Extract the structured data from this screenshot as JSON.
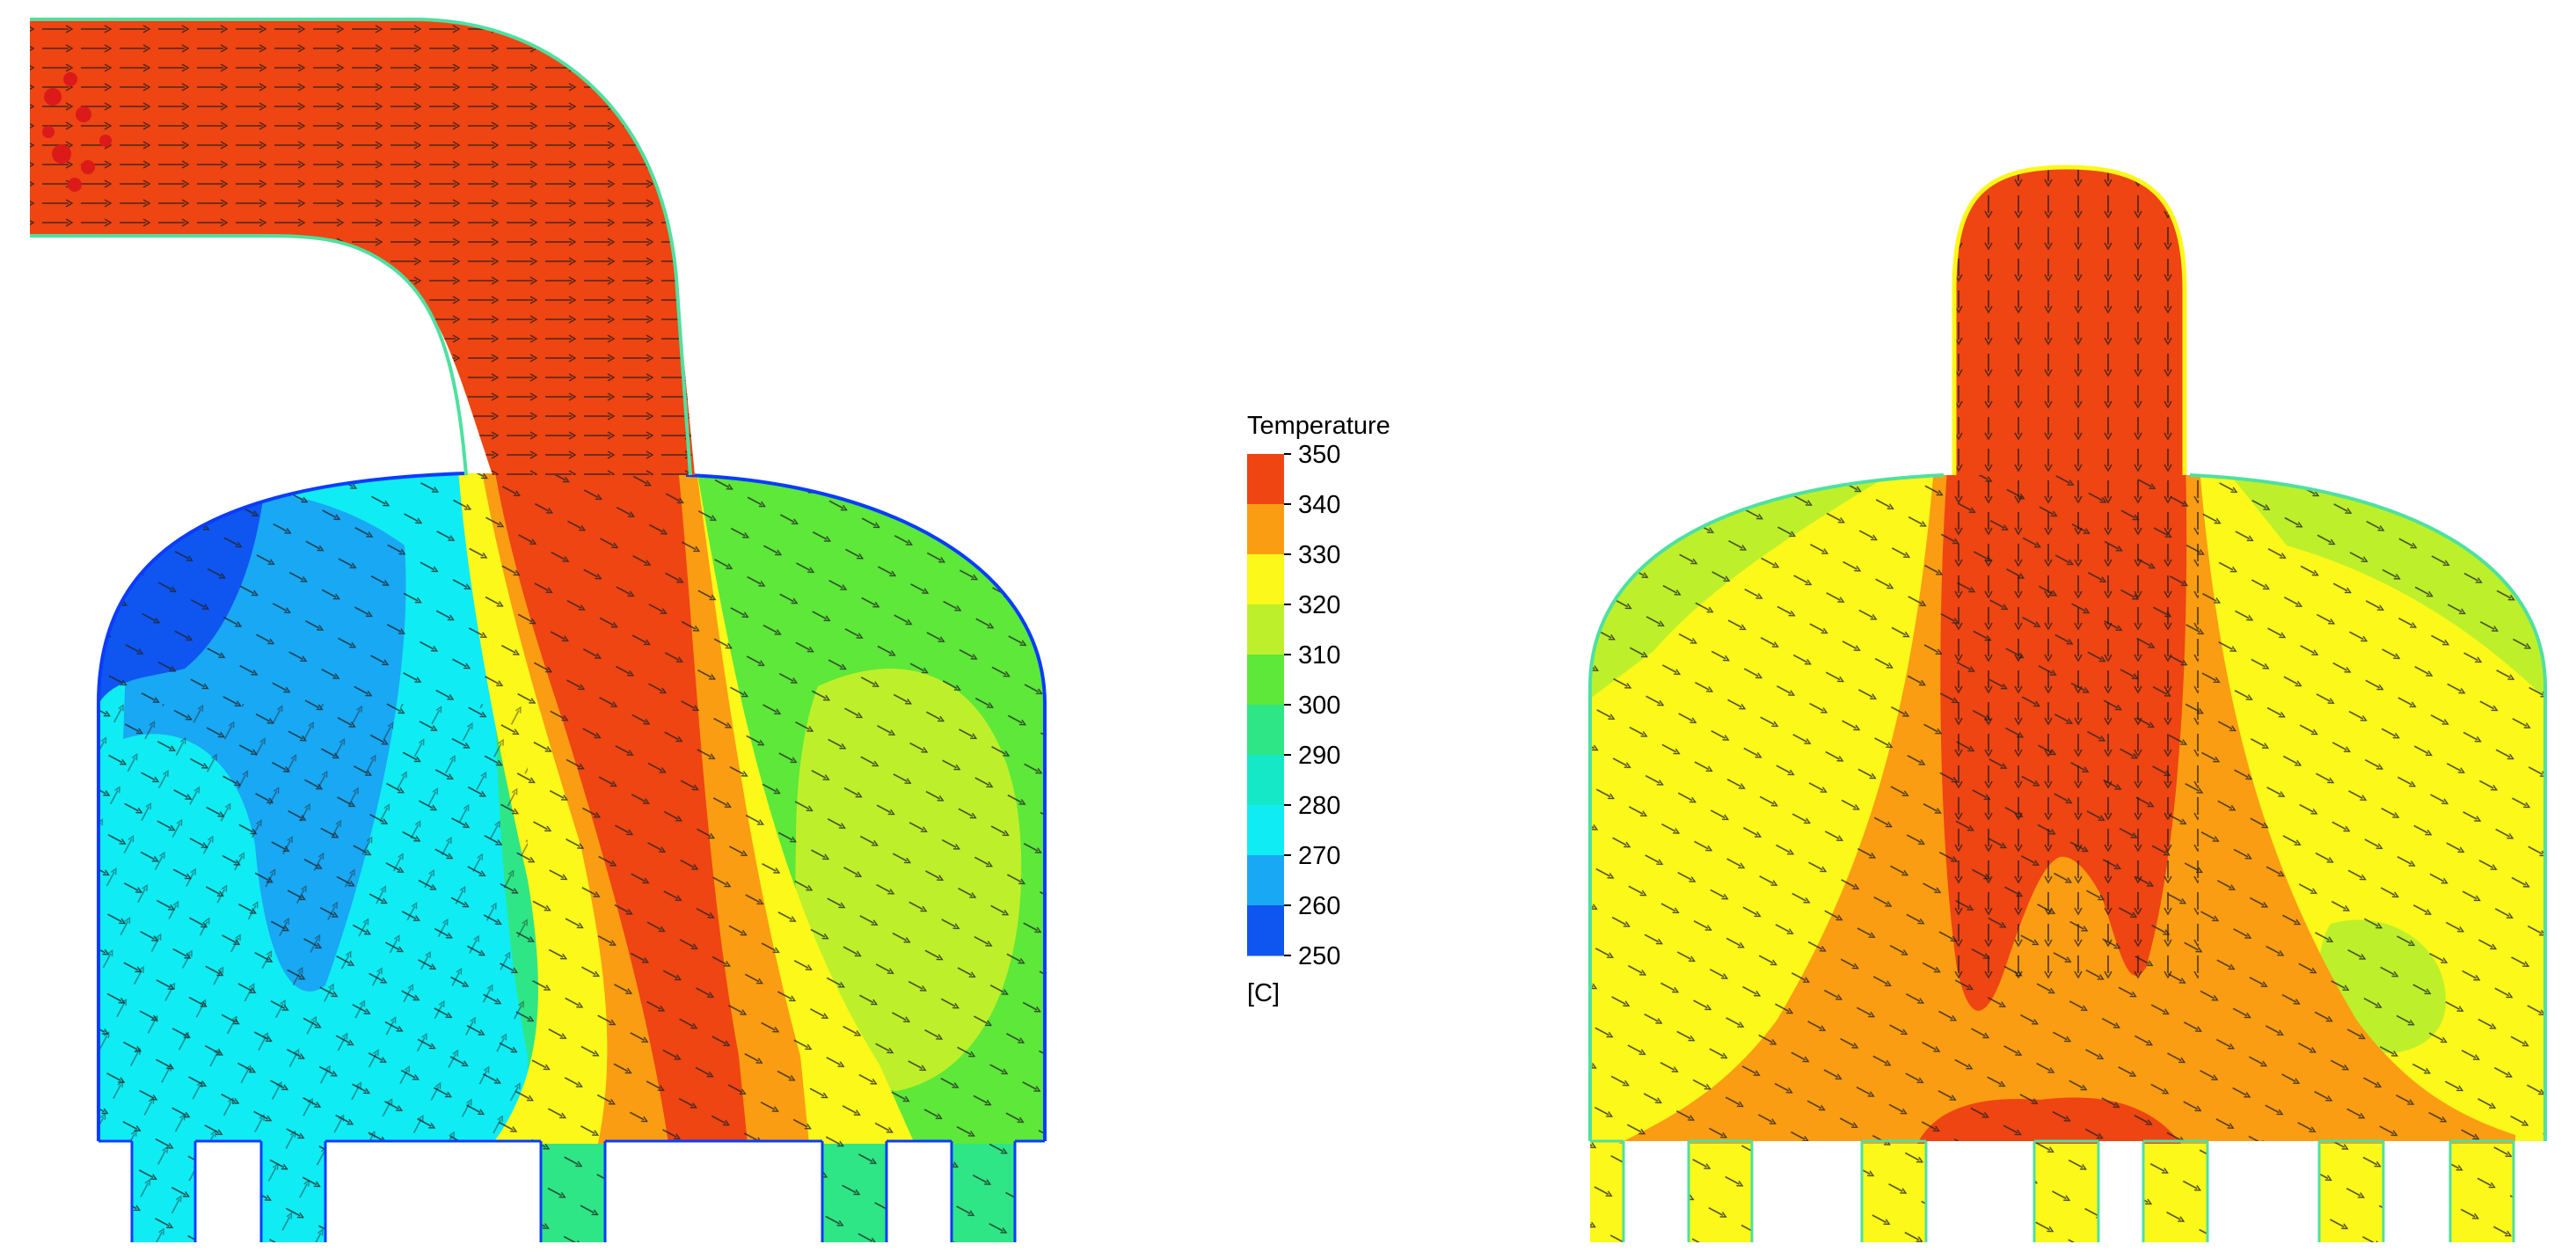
{
  "legend": {
    "title": "Temperature",
    "unit": "[C]",
    "ticks": [
      "350",
      "340",
      "330",
      "320",
      "310",
      "300",
      "290",
      "280",
      "270",
      "260",
      "250"
    ],
    "bands": [
      {
        "from": 340,
        "to": 350,
        "color": "#ee4512"
      },
      {
        "from": 330,
        "to": 340,
        "color": "#fb9d12"
      },
      {
        "from": 320,
        "to": 330,
        "color": "#fbf81a"
      },
      {
        "from": 310,
        "to": 320,
        "color": "#bdf02a"
      },
      {
        "from": 300,
        "to": 310,
        "color": "#5de83a"
      },
      {
        "from": 290,
        "to": 300,
        "color": "#2ee685"
      },
      {
        "from": 280,
        "to": 290,
        "color": "#15e8c6"
      },
      {
        "from": 270,
        "to": 280,
        "color": "#10ecf4"
      },
      {
        "from": 260,
        "to": 270,
        "color": "#19a8f4"
      },
      {
        "from": 250,
        "to": 260,
        "color": "#0f55f0"
      }
    ]
  },
  "panels": [
    {
      "id": "left",
      "inlet": "elbow",
      "inlet_temp": 350
    },
    {
      "id": "right",
      "inlet": "vertical-dome",
      "inlet_temp": 350
    }
  ]
}
